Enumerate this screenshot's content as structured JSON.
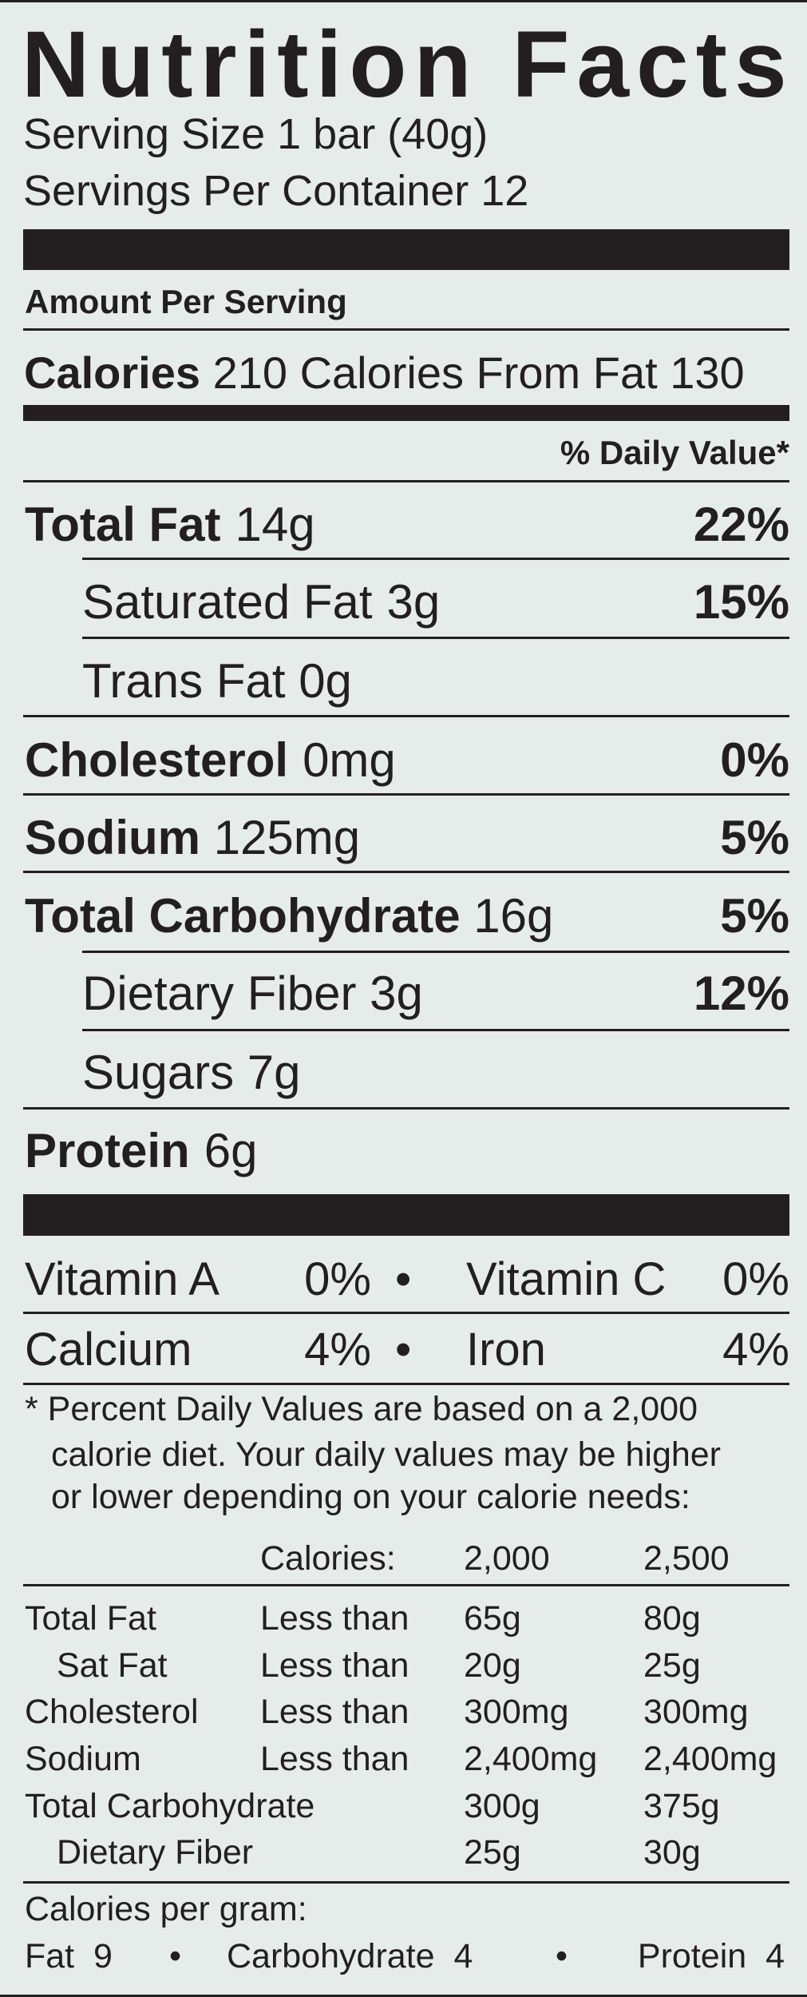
{
  "title": "Nutrition Facts",
  "serving_size": "Serving Size 1 bar (40g)",
  "servings_per_container": "Servings Per Container 12",
  "amount_per_serving": "Amount Per Serving",
  "calories": {
    "label": "Calories",
    "value": "210",
    "from_fat": "Calories From Fat 130"
  },
  "dv_header": "% Daily Value*",
  "nutrients": [
    {
      "name": "Total Fat",
      "amount": "14g",
      "dv": "22%"
    },
    {
      "name": "Saturated Fat",
      "amount": "3g",
      "dv": "15%"
    },
    {
      "name": "Trans Fat",
      "amount": "0g",
      "dv": ""
    },
    {
      "name": "Cholesterol",
      "amount": "0mg",
      "dv": "0%"
    },
    {
      "name": "Sodium",
      "amount": "125mg",
      "dv": "5%"
    },
    {
      "name": "Total Carbohydrate",
      "amount": "16g",
      "dv": "5%"
    },
    {
      "name": "Dietary Fiber",
      "amount": "3g",
      "dv": "12%"
    },
    {
      "name": "Sugars",
      "amount": "7g",
      "dv": ""
    },
    {
      "name": "Protein",
      "amount": "6g",
      "dv": ""
    }
  ],
  "vitamins": [
    {
      "name": "Vitamin A",
      "dv": "0%"
    },
    {
      "name": "Vitamin C",
      "dv": "0%"
    },
    {
      "name": "Calcium",
      "dv": "4%"
    },
    {
      "name": "Iron",
      "dv": "4%"
    }
  ],
  "bullet": "•",
  "footnote": [
    "* Percent Daily Values are based on a 2,000",
    "calorie diet. Your daily values may be higher",
    "or lower depending on your calorie needs:"
  ],
  "dv_table": {
    "header": [
      "Calories:",
      "2,000",
      "2,500"
    ],
    "rows": [
      [
        "Total Fat",
        "Less than",
        "65g",
        "80g"
      ],
      [
        "Sat Fat",
        "Less than",
        "20g",
        "25g"
      ],
      [
        "Cholesterol",
        "Less than",
        "300mg",
        "300mg"
      ],
      [
        "Sodium",
        "Less than",
        "2,400mg",
        "2,400mg"
      ],
      [
        "Total Carbohydrate",
        "",
        "300g",
        "375g"
      ],
      [
        "Dietary Fiber",
        "",
        "25g",
        "30g"
      ]
    ]
  },
  "calories_per_gram": {
    "label": "Calories per gram:",
    "fat": "Fat",
    "fat_value": "9",
    "carb": "Carbohydrate",
    "carb_value": "4",
    "protein": "Protein",
    "protein_value": "4"
  },
  "colors": {
    "background": "#e6ece9",
    "ink": "#231f20"
  }
}
